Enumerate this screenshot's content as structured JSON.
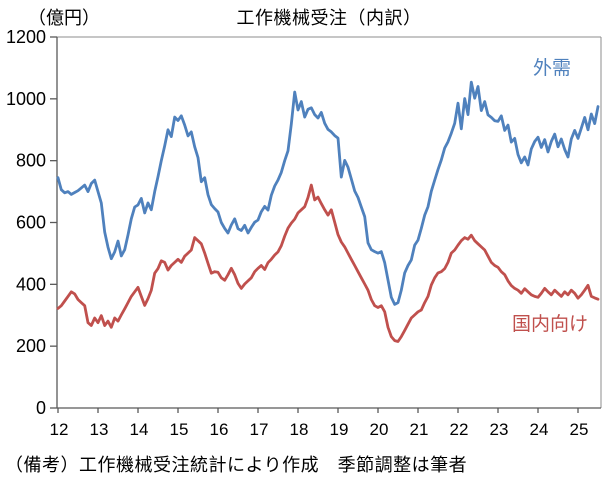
{
  "title": "工作機械受注（内訳）",
  "y_axis_unit": "（億円）",
  "footer": "（備考）工作機械受注統計により作成　季節調整は筆者",
  "legend": {
    "gaiju": "外需",
    "kokunai": "国内向け"
  },
  "colors": {
    "gaiju": "#4F81BD",
    "kokunai": "#C0504D",
    "axis": "#595959",
    "border": "#8C8C8C",
    "text": "#000000",
    "background": "#FFFFFF"
  },
  "chart_data": {
    "type": "line",
    "title": "工作機械受注（内訳）",
    "ylabel": "（億円）",
    "ylim": [
      0,
      1200
    ],
    "y_ticks": [
      0,
      200,
      400,
      600,
      800,
      1000,
      1200
    ],
    "x_tick_labels": [
      "12",
      "13",
      "14",
      "15",
      "16",
      "17",
      "18",
      "19",
      "20",
      "21",
      "22",
      "23",
      "24",
      "25"
    ],
    "x_unit": "year (monthly data, Jan 2012 - Jul 2025)",
    "grid": false,
    "legend_position": "inline-labels",
    "series": [
      {
        "name": "外需",
        "color": "#4F81BD",
        "values": [
          745,
          706,
          696,
          700,
          691,
          697,
          703,
          712,
          721,
          700,
          726,
          737,
          700,
          663,
          569,
          520,
          483,
          505,
          540,
          492,
          512,
          560,
          612,
          650,
          657,
          678,
          631,
          663,
          641,
          700,
          748,
          800,
          848,
          900,
          878,
          941,
          930,
          945,
          915,
          880,
          893,
          845,
          810,
          732,
          745,
          690,
          658,
          645,
          634,
          600,
          581,
          566,
          592,
          612,
          580,
          574,
          591,
          566,
          584,
          601,
          608,
          635,
          652,
          640,
          688,
          718,
          737,
          762,
          800,
          832,
          918,
          1022,
          964,
          991,
          941,
          966,
          971,
          949,
          938,
          956,
          921,
          901,
          893,
          881,
          873,
          747,
          801,
          779,
          741,
          702,
          681,
          650,
          619,
          534,
          512,
          506,
          501,
          506,
          470,
          414,
          358,
          335,
          341,
          381,
          437,
          461,
          479,
          527,
          543,
          581,
          624,
          651,
          701,
          737,
          771,
          802,
          841,
          861,
          889,
          921,
          986,
          903,
          1001,
          949,
          1054,
          1002,
          1040,
          962,
          991,
          948,
          940,
          929,
          927,
          945,
          898,
          915,
          860,
          872,
          820,
          793,
          812,
          786,
          838,
          862,
          876,
          843,
          868,
          828,
          862,
          886,
          845,
          870,
          836,
          812,
          870,
          898,
          872,
          905,
          940,
          900,
          951,
          920,
          975
        ]
      },
      {
        "name": "国内向け",
        "color": "#C0504D",
        "values": [
          322,
          331,
          346,
          361,
          376,
          369,
          351,
          341,
          331,
          276,
          267,
          291,
          276,
          299,
          267,
          281,
          261,
          291,
          281,
          301,
          321,
          341,
          361,
          376,
          390,
          361,
          332,
          354,
          381,
          436,
          451,
          476,
          471,
          446,
          461,
          471,
          481,
          471,
          491,
          501,
          511,
          551,
          541,
          531,
          501,
          468,
          436,
          441,
          439,
          421,
          413,
          431,
          452,
          431,
          403,
          387,
          401,
          411,
          421,
          441,
          452,
          461,
          448,
          470,
          481,
          495,
          505,
          525,
          556,
          582,
          598,
          611,
          631,
          641,
          651,
          681,
          721,
          673,
          682,
          661,
          641,
          624,
          641,
          601,
          561,
          537,
          521,
          501,
          481,
          461,
          441,
          421,
          401,
          381,
          351,
          331,
          325,
          331,
          311,
          261,
          231,
          218,
          215,
          231,
          251,
          271,
          291,
          301,
          311,
          317,
          341,
          361,
          398,
          421,
          437,
          441,
          451,
          471,
          501,
          511,
          527,
          541,
          551,
          546,
          559,
          541,
          531,
          521,
          511,
          491,
          471,
          461,
          455,
          441,
          431,
          411,
          396,
          387,
          381,
          371,
          386,
          376,
          366,
          361,
          358,
          371,
          387,
          376,
          366,
          381,
          371,
          361,
          376,
          366,
          381,
          371,
          355,
          366,
          381,
          397,
          361,
          356,
          352
        ]
      }
    ]
  }
}
